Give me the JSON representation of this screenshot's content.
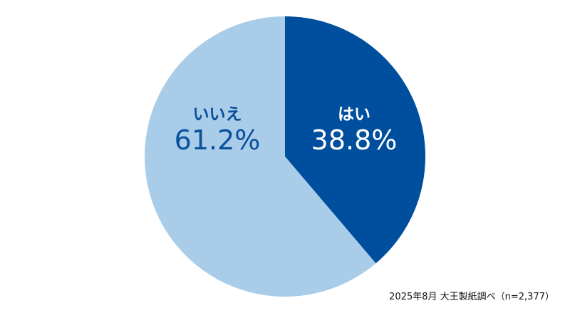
{
  "chart_data": {
    "type": "pie",
    "start": "top",
    "direction": "clockwise",
    "slices": [
      {
        "label": "はい",
        "value": 38.8,
        "value_label": "38.8%",
        "color": "#004e9e",
        "text_color": "#ffffff"
      },
      {
        "label": "いいえ",
        "value": 61.2,
        "value_label": "61.2%",
        "color": "#a9cde8",
        "text_color": "#0a4f9c"
      }
    ],
    "legend": "none",
    "annotation": "2025年8月 大王製紙調べ（n=2,377）"
  }
}
